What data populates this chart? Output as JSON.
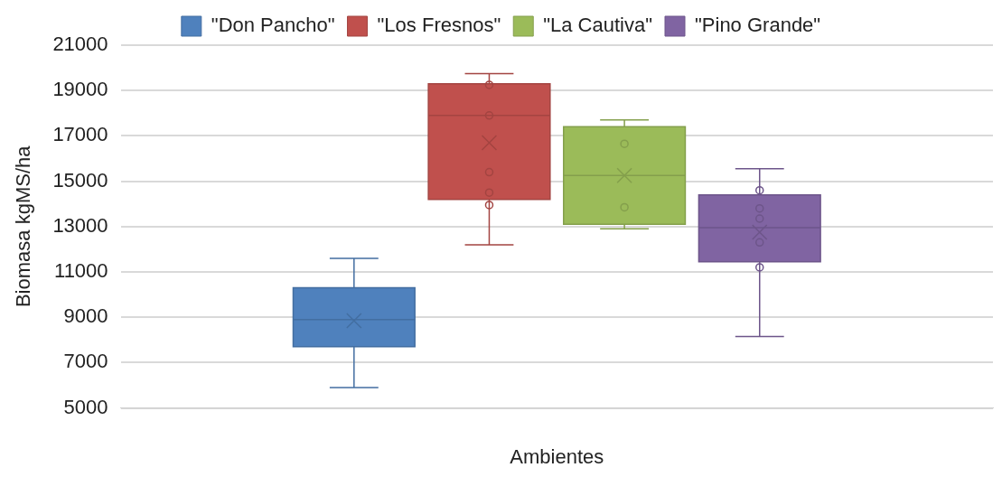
{
  "chart_data": {
    "type": "box",
    "xlabel": "Ambientes",
    "ylabel": "Biomasa kgMS/ha",
    "categories": [
      null
    ],
    "ylim": [
      5000,
      21000
    ],
    "yticks": [
      5000,
      7000,
      9000,
      11000,
      13000,
      15000,
      17000,
      19000,
      21000
    ],
    "grid": "y",
    "legend": "top",
    "series": [
      {
        "name": "\"Don Pancho\"",
        "color": "#4f81bd",
        "boxes": [
          {
            "low": 5900,
            "q1": 7700,
            "median": 8900,
            "q3": 10300,
            "high": 11600,
            "mean": 8850
          }
        ]
      },
      {
        "name": "\"Los Fresnos\"",
        "color": "#c0504d",
        "boxes": [
          {
            "low": 12200,
            "q1": 14200,
            "median": 17900,
            "q3": 19300,
            "high": 19750,
            "mean": 16700,
            "outliers": [
              19250,
              17900,
              15400,
              14500,
              13950
            ]
          }
        ]
      },
      {
        "name": "\"La Cautiva\"",
        "color": "#9bbb59",
        "boxes": [
          {
            "low": 12900,
            "q1": 13100,
            "median": 15250,
            "q3": 17400,
            "high": 17700,
            "mean": 15250,
            "outliers": [
              16650,
              13850
            ]
          }
        ]
      },
      {
        "name": "\"Pino Grande\"",
        "color": "#8064a2",
        "boxes": [
          {
            "low": 8150,
            "q1": 11450,
            "median": 12950,
            "q3": 14400,
            "high": 15550,
            "mean": 12750,
            "outliers": [
              14600,
              13800,
              13350,
              12300,
              11200
            ]
          }
        ]
      }
    ]
  }
}
